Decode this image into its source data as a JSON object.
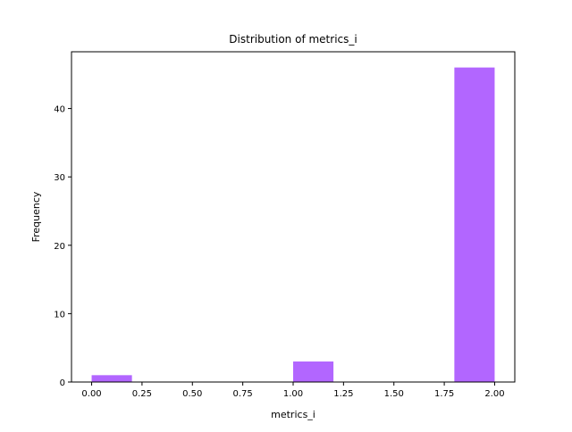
{
  "chart_data": {
    "type": "bar",
    "title": "Distribution of  metrics_i",
    "xlabel": "metrics_i",
    "ylabel": "Frequency",
    "xlim": [
      -0.1,
      2.1
    ],
    "ylim": [
      0,
      48.3
    ],
    "x_ticks": [
      "0.00",
      "0.25",
      "0.50",
      "0.75",
      "1.00",
      "1.25",
      "1.50",
      "1.75",
      "2.00"
    ],
    "y_ticks": [
      "0",
      "10",
      "20",
      "30",
      "40"
    ],
    "bins": [
      {
        "start": 0.0,
        "end": 0.2,
        "count": 1
      },
      {
        "start": 0.2,
        "end": 0.4,
        "count": 0
      },
      {
        "start": 0.4,
        "end": 0.6,
        "count": 0
      },
      {
        "start": 0.6,
        "end": 0.8,
        "count": 0
      },
      {
        "start": 0.8,
        "end": 1.0,
        "count": 0
      },
      {
        "start": 1.0,
        "end": 1.2,
        "count": 3
      },
      {
        "start": 1.2,
        "end": 1.4,
        "count": 0
      },
      {
        "start": 1.4,
        "end": 1.6,
        "count": 0
      },
      {
        "start": 1.6,
        "end": 1.8,
        "count": 0
      },
      {
        "start": 1.8,
        "end": 2.0,
        "count": 46
      }
    ],
    "bar_color": "#b266ff",
    "grid": false,
    "legend": false
  }
}
